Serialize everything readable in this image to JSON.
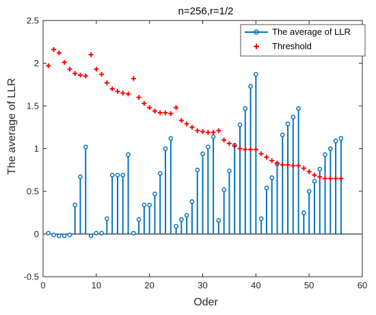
{
  "chart_data": {
    "type": "stem",
    "title": "n=256,r=1/2",
    "xlabel": "Oder",
    "ylabel": "The average of LLR",
    "xlim": [
      0,
      60
    ],
    "ylim": [
      -0.5,
      2.5
    ],
    "xticks": [
      0,
      10,
      20,
      30,
      40,
      50,
      60
    ],
    "yticks": [
      -0.5,
      0,
      0.5,
      1,
      1.5,
      2,
      2.5
    ],
    "xtick_labels": [
      "0",
      "10",
      "20",
      "30",
      "40",
      "50",
      "60"
    ],
    "ytick_labels": [
      "-0.5",
      "0",
      "0.5",
      "1",
      "1.5",
      "2",
      "2.5"
    ],
    "grid": false,
    "legend_position": "top-right",
    "series": [
      {
        "name": "The average of LLR",
        "style": "stem",
        "color": "#0072BD",
        "x": [
          1,
          2,
          3,
          4,
          5,
          6,
          7,
          8,
          9,
          10,
          11,
          12,
          13,
          14,
          15,
          16,
          17,
          18,
          19,
          20,
          21,
          22,
          23,
          24,
          25,
          26,
          27,
          28,
          29,
          30,
          31,
          32,
          33,
          34,
          35,
          36,
          37,
          38,
          39,
          40,
          41,
          42,
          43,
          44,
          45,
          46,
          47,
          48,
          49,
          50,
          51,
          52,
          53,
          54,
          55,
          56
        ],
        "values": [
          0.01,
          -0.01,
          -0.02,
          -0.02,
          -0.01,
          0.34,
          0.67,
          1.02,
          -0.02,
          0.01,
          0.01,
          0.18,
          0.69,
          0.69,
          0.69,
          0.93,
          0.01,
          0.17,
          0.34,
          0.34,
          0.47,
          0.71,
          1.0,
          1.12,
          0.09,
          0.17,
          0.22,
          0.38,
          0.75,
          0.94,
          1.02,
          1.14,
          0.16,
          0.52,
          0.74,
          1.04,
          1.28,
          1.47,
          1.73,
          1.87,
          0.18,
          0.54,
          0.66,
          0.82,
          1.16,
          1.29,
          1.37,
          1.47,
          0.25,
          0.5,
          0.62,
          0.76,
          0.93,
          1.0,
          1.09,
          1.12
        ]
      },
      {
        "name": "Threshold",
        "style": "marker-plus",
        "color": "#FF0000",
        "x": [
          1,
          2,
          3,
          4,
          5,
          6,
          7,
          8,
          9,
          10,
          11,
          12,
          13,
          14,
          15,
          16,
          17,
          18,
          19,
          20,
          21,
          22,
          23,
          24,
          25,
          26,
          27,
          28,
          29,
          30,
          31,
          32,
          33,
          34,
          35,
          36,
          37,
          38,
          39,
          40,
          41,
          42,
          43,
          44,
          45,
          46,
          47,
          48,
          49,
          50,
          51,
          52,
          53,
          54,
          55,
          56
        ],
        "values": [
          1.97,
          2.16,
          2.12,
          2.01,
          1.93,
          1.88,
          1.86,
          1.85,
          2.1,
          1.93,
          1.87,
          1.77,
          1.7,
          1.67,
          1.65,
          1.64,
          1.82,
          1.6,
          1.53,
          1.48,
          1.44,
          1.42,
          1.42,
          1.41,
          1.48,
          1.33,
          1.29,
          1.25,
          1.21,
          1.2,
          1.19,
          1.19,
          1.21,
          1.1,
          1.06,
          1.03,
          1.0,
          0.99,
          0.99,
          0.99,
          0.94,
          0.9,
          0.86,
          0.83,
          0.81,
          0.81,
          0.8,
          0.8,
          0.77,
          0.73,
          0.69,
          0.67,
          0.65,
          0.65,
          0.65,
          0.65
        ]
      }
    ]
  }
}
